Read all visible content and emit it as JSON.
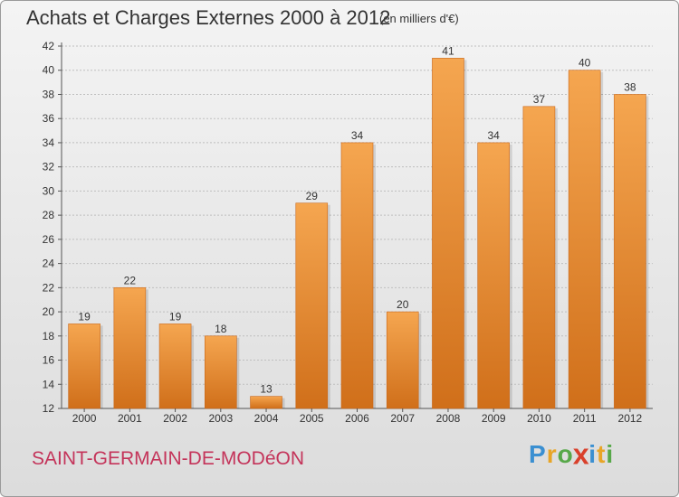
{
  "header": {
    "title": "Achats et Charges Externes 2000 à 2012",
    "unit": "(en milliers d'€)"
  },
  "footer": {
    "commune": "SAINT-GERMAIN-DE-MODéON",
    "brand_letters": [
      "P",
      "r",
      "o",
      "x",
      "i",
      "t",
      "i"
    ],
    "brand_colors": [
      "#3a8fd1",
      "#e8a526",
      "#57a849",
      "#d9402b",
      "#3a8fd1",
      "#e8a526",
      "#57a849"
    ]
  },
  "colors": {
    "bar_light": "#f5a650",
    "bar_dark": "#d06f1a",
    "grid": "#bfbfbf",
    "axis": "#555555"
  },
  "chart_data": {
    "type": "bar",
    "title": "Achats et Charges Externes 2000 à 2012",
    "categories": [
      "2000",
      "2001",
      "2002",
      "2003",
      "2004",
      "2005",
      "2006",
      "2007",
      "2008",
      "2009",
      "2010",
      "2011",
      "2012"
    ],
    "values": [
      19,
      22,
      19,
      18,
      13,
      29,
      34,
      20,
      41,
      34,
      37,
      40,
      38
    ],
    "ylim": [
      12,
      42
    ],
    "yticks": [
      12,
      14,
      16,
      18,
      20,
      22,
      24,
      26,
      28,
      30,
      32,
      34,
      36,
      38,
      40,
      42
    ],
    "grid": true,
    "xlabel": "",
    "ylabel": ""
  }
}
